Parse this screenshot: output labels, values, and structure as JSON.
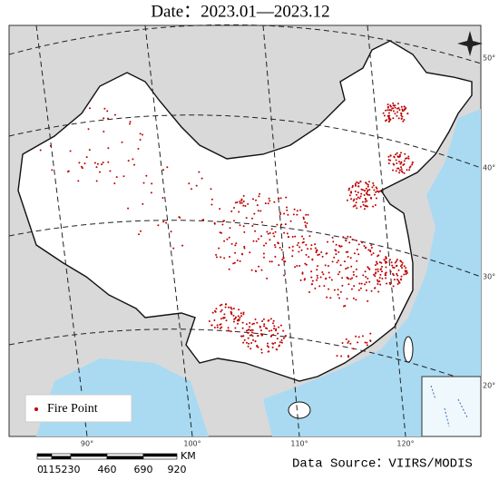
{
  "title": "Date：2023.01—2023.12",
  "legend": {
    "label": "Fire Point"
  },
  "source": "Data Source：VIIRS/MODIS",
  "graticule": {
    "longitudes": [
      "90°",
      "100°",
      "110°",
      "120°"
    ],
    "latitudes": [
      "50°",
      "40°",
      "30°",
      "20°"
    ]
  },
  "scale_bar": {
    "labels": [
      "0",
      "115",
      "230",
      "460",
      "690",
      "920"
    ],
    "unit": "KM"
  }
}
